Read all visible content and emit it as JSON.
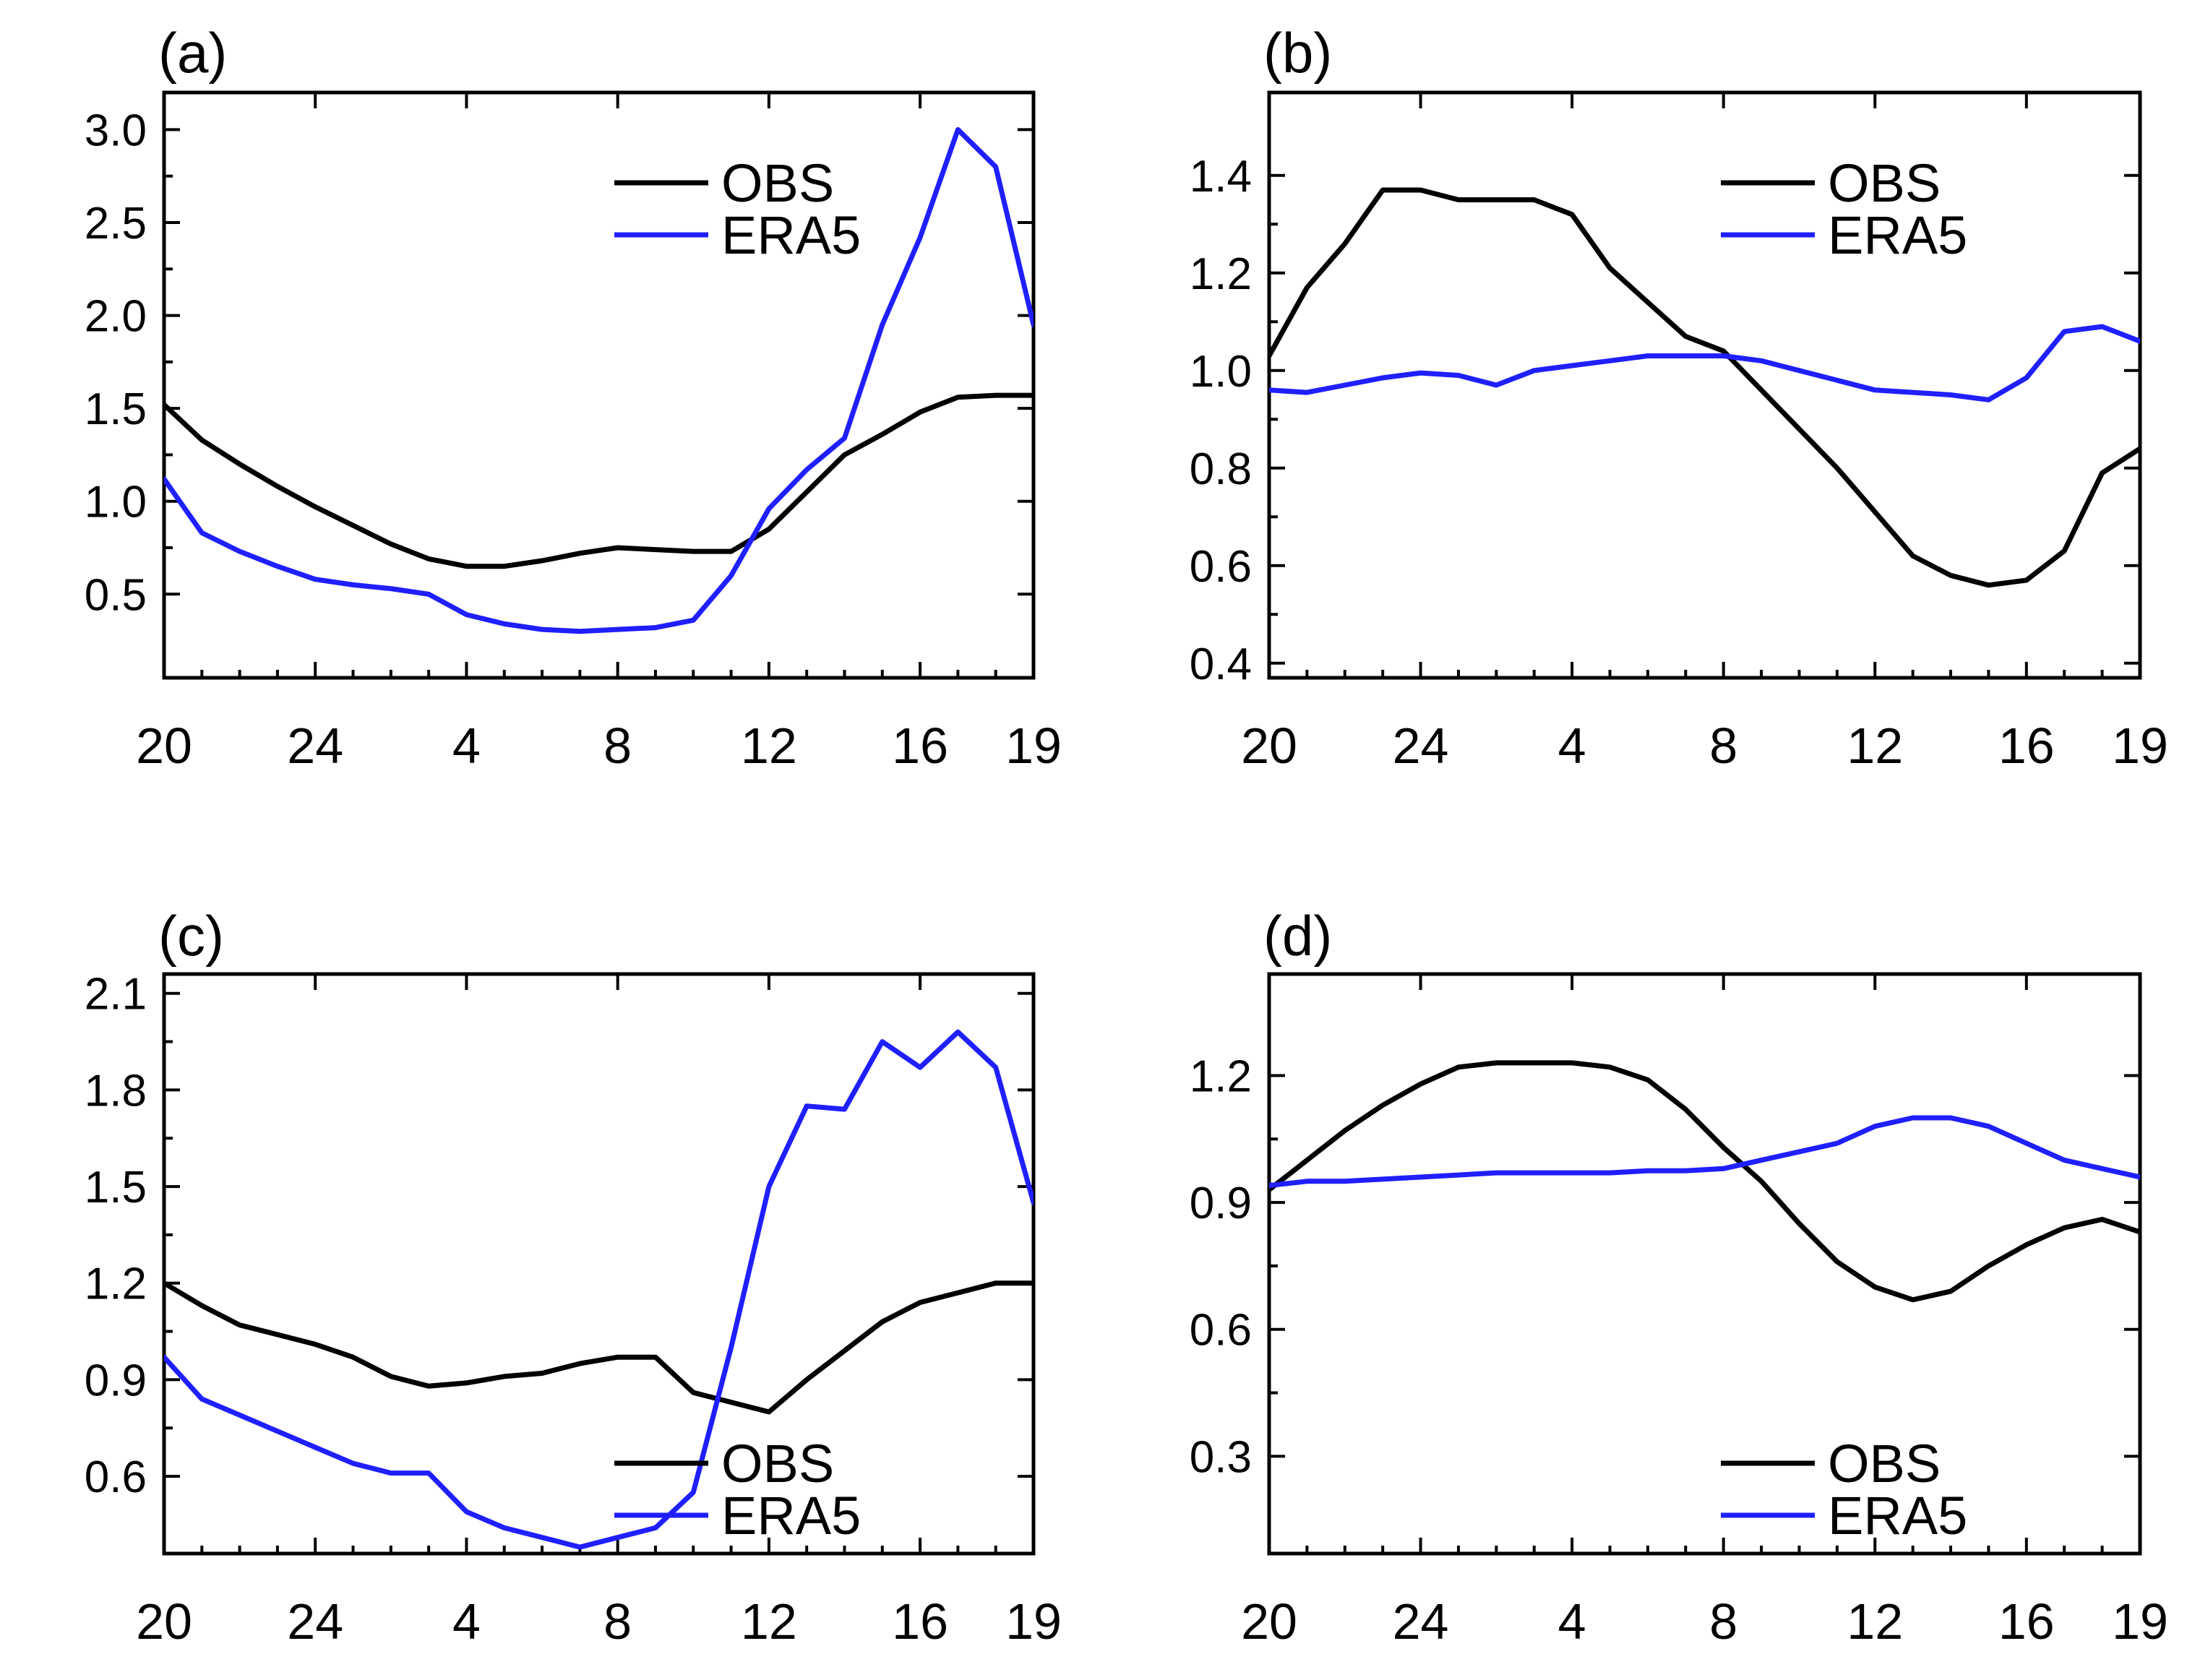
{
  "colors": {
    "OBS": "#000000",
    "ERA5": "#1f1fff"
  },
  "chart_data": [
    {
      "type": "line",
      "title": "(a)",
      "xlabel": "",
      "ylabel": "",
      "x_positions": [
        0,
        1,
        2,
        3,
        4,
        5,
        6,
        7,
        8,
        9,
        10,
        11,
        12,
        13,
        14,
        15,
        16,
        17,
        18,
        19,
        20,
        21,
        22,
        23
      ],
      "xtick_labels": [
        "20",
        "24",
        "4",
        "8",
        "12",
        "16",
        "19"
      ],
      "xtick_index": [
        0,
        4,
        8,
        12,
        16,
        20,
        23
      ],
      "yticks": [
        "0.5",
        "1.0",
        "1.5",
        "2.0",
        "2.5",
        "3.0"
      ],
      "ylim": [
        0.05,
        3.2
      ],
      "legend": [
        "OBS",
        "ERA5"
      ],
      "legend_position": "top-right",
      "series": [
        {
          "name": "OBS",
          "values": [
            1.52,
            1.33,
            1.2,
            1.08,
            0.97,
            0.87,
            0.77,
            0.69,
            0.65,
            0.65,
            0.68,
            0.72,
            0.75,
            0.74,
            0.73,
            0.73,
            0.85,
            1.05,
            1.25,
            1.36,
            1.48,
            1.56,
            1.57,
            1.57
          ]
        },
        {
          "name": "ERA5",
          "values": [
            1.12,
            0.83,
            0.73,
            0.65,
            0.58,
            0.55,
            0.53,
            0.5,
            0.39,
            0.34,
            0.31,
            0.3,
            0.31,
            0.32,
            0.36,
            0.6,
            0.96,
            1.17,
            1.34,
            1.95,
            2.42,
            3.0,
            2.8,
            1.95
          ]
        }
      ]
    },
    {
      "type": "line",
      "title": "(b)",
      "xlabel": "",
      "ylabel": "",
      "x_positions": [
        0,
        1,
        2,
        3,
        4,
        5,
        6,
        7,
        8,
        9,
        10,
        11,
        12,
        13,
        14,
        15,
        16,
        17,
        18,
        19,
        20,
        21,
        22,
        23
      ],
      "xtick_labels": [
        "20",
        "24",
        "4",
        "8",
        "12",
        "16",
        "19"
      ],
      "xtick_index": [
        0,
        4,
        8,
        12,
        16,
        20,
        23
      ],
      "yticks": [
        "0.4",
        "0.6",
        "0.8",
        "1.0",
        "1.2",
        "1.4"
      ],
      "ylim": [
        0.37,
        1.57
      ],
      "legend": [
        "OBS",
        "ERA5"
      ],
      "legend_position": "top-right",
      "series": [
        {
          "name": "OBS",
          "values": [
            1.03,
            1.17,
            1.26,
            1.37,
            1.37,
            1.35,
            1.35,
            1.35,
            1.32,
            1.21,
            1.14,
            1.07,
            1.04,
            0.96,
            0.88,
            0.8,
            0.71,
            0.62,
            0.58,
            0.56,
            0.57,
            0.63,
            0.79,
            0.84
          ]
        },
        {
          "name": "ERA5",
          "values": [
            0.96,
            0.955,
            0.97,
            0.985,
            0.995,
            0.99,
            0.97,
            1.0,
            1.01,
            1.02,
            1.03,
            1.03,
            1.03,
            1.02,
            1.0,
            0.98,
            0.96,
            0.955,
            0.95,
            0.94,
            0.985,
            1.08,
            1.09,
            1.06
          ]
        }
      ]
    },
    {
      "type": "line",
      "title": "(c)",
      "xlabel": "",
      "ylabel": "",
      "x_positions": [
        0,
        1,
        2,
        3,
        4,
        5,
        6,
        7,
        8,
        9,
        10,
        11,
        12,
        13,
        14,
        15,
        16,
        17,
        18,
        19,
        20,
        21,
        22,
        23
      ],
      "xtick_labels": [
        "20",
        "24",
        "4",
        "8",
        "12",
        "16",
        "19"
      ],
      "xtick_index": [
        0,
        4,
        8,
        12,
        16,
        20,
        23
      ],
      "yticks": [
        "0.6",
        "0.9",
        "1.2",
        "1.5",
        "1.8",
        "2.1"
      ],
      "ylim": [
        0.36,
        2.16
      ],
      "legend": [
        "OBS",
        "ERA5"
      ],
      "legend_position": "bottom-right",
      "series": [
        {
          "name": "OBS",
          "values": [
            1.2,
            1.13,
            1.07,
            1.04,
            1.01,
            0.97,
            0.91,
            0.88,
            0.89,
            0.91,
            0.92,
            0.95,
            0.97,
            0.97,
            0.86,
            0.83,
            0.8,
            0.9,
            0.99,
            1.08,
            1.14,
            1.17,
            1.2,
            1.2
          ]
        },
        {
          "name": "ERA5",
          "values": [
            0.97,
            0.84,
            0.79,
            0.74,
            0.69,
            0.64,
            0.61,
            0.61,
            0.49,
            0.44,
            0.41,
            0.38,
            0.41,
            0.44,
            0.55,
            1.0,
            1.5,
            1.75,
            1.74,
            1.95,
            1.87,
            1.98,
            1.87,
            1.45
          ]
        }
      ]
    },
    {
      "type": "line",
      "title": "(d)",
      "xlabel": "",
      "ylabel": "",
      "x_positions": [
        0,
        1,
        2,
        3,
        4,
        5,
        6,
        7,
        8,
        9,
        10,
        11,
        12,
        13,
        14,
        15,
        16,
        17,
        18,
        19,
        20,
        21,
        22,
        23
      ],
      "xtick_labels": [
        "20",
        "24",
        "4",
        "8",
        "12",
        "16",
        "19"
      ],
      "xtick_index": [
        0,
        4,
        8,
        12,
        16,
        20,
        23
      ],
      "yticks": [
        "0.3",
        "0.6",
        "0.9",
        "1.2"
      ],
      "ylim": [
        0.07,
        1.44
      ],
      "legend": [
        "OBS",
        "ERA5"
      ],
      "legend_position": "bottom-right",
      "series": [
        {
          "name": "OBS",
          "values": [
            0.93,
            1.0,
            1.07,
            1.13,
            1.18,
            1.22,
            1.23,
            1.23,
            1.23,
            1.22,
            1.19,
            1.12,
            1.03,
            0.95,
            0.85,
            0.76,
            0.7,
            0.67,
            0.69,
            0.75,
            0.8,
            0.84,
            0.86,
            0.83
          ]
        },
        {
          "name": "ERA5",
          "values": [
            0.94,
            0.95,
            0.95,
            0.955,
            0.96,
            0.965,
            0.97,
            0.97,
            0.97,
            0.97,
            0.975,
            0.975,
            0.98,
            1.0,
            1.02,
            1.04,
            1.08,
            1.1,
            1.1,
            1.08,
            1.04,
            1.0,
            0.98,
            0.96
          ]
        }
      ]
    }
  ]
}
